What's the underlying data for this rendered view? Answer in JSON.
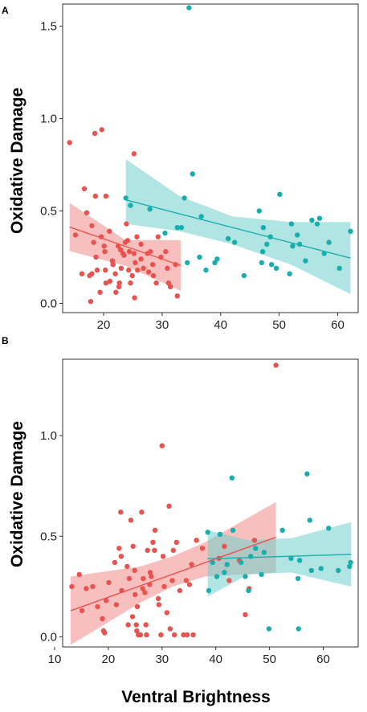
{
  "figure": {
    "xlabel": "Ventral Brightness",
    "colors": {
      "red": "#E8534F",
      "teal": "#19AEAE",
      "red_band": "#F08C88",
      "teal_band": "#6FCFCC"
    }
  },
  "chart_data": [
    {
      "panel": "A",
      "type": "scatter",
      "ylabel": "Oxidative Damage",
      "xlim": [
        13,
        63.5
      ],
      "ylim": [
        -0.05,
        1.62
      ],
      "xticks": [
        20,
        30,
        40,
        50,
        60
      ],
      "yticks": [
        0.0,
        0.5,
        1.0,
        1.5
      ],
      "ytick_labels": [
        "0.0",
        "0.5",
        "1.0",
        "1.5"
      ],
      "grid": false,
      "series": [
        {
          "color": "#E8534F",
          "points": [
            [
              14.2,
              0.87
            ],
            [
              15.2,
              0.37
            ],
            [
              16.3,
              0.16
            ],
            [
              16.7,
              0.62
            ],
            [
              17.1,
              0.49
            ],
            [
              17.6,
              0.15
            ],
            [
              17.8,
              0.01
            ],
            [
              18.0,
              0.42
            ],
            [
              18.0,
              0.16
            ],
            [
              18.3,
              0.33
            ],
            [
              18.5,
              0.92
            ],
            [
              18.6,
              0.58
            ],
            [
              18.7,
              0.25
            ],
            [
              18.9,
              0.18
            ],
            [
              19.4,
              0.06
            ],
            [
              19.6,
              0.36
            ],
            [
              19.7,
              0.94
            ],
            [
              20.1,
              0.31
            ],
            [
              20.2,
              0.28
            ],
            [
              20.3,
              0.18
            ],
            [
              20.4,
              0.58
            ],
            [
              20.4,
              0.11
            ],
            [
              21.0,
              0.39
            ],
            [
              21.1,
              0.12
            ],
            [
              21.5,
              0.23
            ],
            [
              21.6,
              0.21
            ],
            [
              22.0,
              0.16
            ],
            [
              22.1,
              0.06
            ],
            [
              22.5,
              0.31
            ],
            [
              22.6,
              0.09
            ],
            [
              22.7,
              0.11
            ],
            [
              22.9,
              0.29
            ],
            [
              23.0,
              0.19
            ],
            [
              23.3,
              0.27
            ],
            [
              23.5,
              0.26
            ],
            [
              23.7,
              0.33
            ],
            [
              23.9,
              0.43
            ],
            [
              24.1,
              0.34
            ],
            [
              24.3,
              0.18
            ],
            [
              24.4,
              0.28
            ],
            [
              24.6,
              0.11
            ],
            [
              24.9,
              0.15
            ],
            [
              25.2,
              0.81
            ],
            [
              25.2,
              0.27
            ],
            [
              25.3,
              0.03
            ],
            [
              25.4,
              0.22
            ],
            [
              25.7,
              0.36
            ],
            [
              25.8,
              0.18
            ],
            [
              26.4,
              0.32
            ],
            [
              26.4,
              0.24
            ],
            [
              26.8,
              0.19
            ],
            [
              27.5,
              0.27
            ],
            [
              27.7,
              0.17
            ],
            [
              28.0,
              0.28
            ],
            [
              28.4,
              0.21
            ],
            [
              28.5,
              0.15
            ],
            [
              29.0,
              0.11
            ],
            [
              29.3,
              0.36
            ],
            [
              29.8,
              0.25
            ],
            [
              30.6,
              0.28
            ],
            [
              30.9,
              0.19
            ],
            [
              31.1,
              0.11
            ],
            [
              31.4,
              0.09
            ],
            [
              32.3,
              0.21
            ],
            [
              32.6,
              0.04
            ]
          ],
          "fit": {
            "x": [
              14.2,
              33.2
            ],
            "y": [
              0.413,
              0.205
            ]
          },
          "band": {
            "x": [
              14.2,
              23.7,
              33.2
            ],
            "lower": [
              0.283,
              0.203,
              0.068
            ],
            "upper": [
              0.543,
              0.343,
              0.342
            ]
          }
        },
        {
          "color": "#19AEAE",
          "points": [
            [
              23.8,
              0.57
            ],
            [
              24.6,
              0.53
            ],
            [
              27.9,
              0.51
            ],
            [
              30.5,
              0.38
            ],
            [
              32.6,
              0.41
            ],
            [
              33.3,
              0.41
            ],
            [
              33.8,
              0.57
            ],
            [
              34.3,
              0.22
            ],
            [
              34.6,
              1.6
            ],
            [
              35.2,
              0.7
            ],
            [
              36.4,
              0.25
            ],
            [
              36.7,
              0.47
            ],
            [
              37.5,
              0.18
            ],
            [
              39.0,
              0.22
            ],
            [
              39.4,
              0.24
            ],
            [
              41.3,
              0.35
            ],
            [
              42.4,
              0.33
            ],
            [
              44.0,
              0.15
            ],
            [
              46.6,
              0.5
            ],
            [
              47.0,
              0.22
            ],
            [
              47.2,
              0.28
            ],
            [
              47.3,
              0.41
            ],
            [
              47.9,
              0.32
            ],
            [
              48.5,
              0.36
            ],
            [
              48.7,
              0.21
            ],
            [
              49.5,
              0.19
            ],
            [
              50.1,
              0.59
            ],
            [
              51.8,
              0.16
            ],
            [
              52.1,
              0.43
            ],
            [
              52.3,
              0.31
            ],
            [
              53.1,
              0.37
            ],
            [
              53.5,
              0.32
            ],
            [
              54.5,
              0.23
            ],
            [
              55.6,
              0.45
            ],
            [
              56.5,
              0.43
            ],
            [
              56.9,
              0.46
            ],
            [
              57.7,
              0.27
            ],
            [
              58.5,
              0.33
            ],
            [
              60.3,
              0.19
            ],
            [
              62.2,
              0.39
            ]
          ],
          "fit": {
            "x": [
              23.8,
              62.2
            ],
            "y": [
              0.56,
              0.245
            ]
          },
          "band": {
            "x": [
              23.8,
              33.0,
              42.0,
              52.0,
              62.2
            ],
            "lower": [
              0.43,
              0.39,
              0.32,
              0.21,
              0.05
            ],
            "upper": [
              0.78,
              0.58,
              0.47,
              0.44,
              0.44
            ]
          }
        }
      ]
    },
    {
      "panel": "B",
      "type": "scatter",
      "ylabel": "Oxidative Damage",
      "xlim": [
        11.5,
        66.5
      ],
      "ylim": [
        -0.05,
        1.38
      ],
      "xticks": [
        10,
        20,
        30,
        40,
        50,
        60
      ],
      "yticks": [
        0.0,
        0.5,
        1.0
      ],
      "ytick_labels": [
        "0.0",
        "0.5",
        "1.0"
      ],
      "grid": false,
      "series": [
        {
          "color": "#E8534F",
          "points": [
            [
              13.2,
              0.25
            ],
            [
              14.6,
              0.31
            ],
            [
              15.1,
              0.13
            ],
            [
              15.9,
              0.24
            ],
            [
              17.1,
              0.25
            ],
            [
              18.0,
              0.15
            ],
            [
              18.9,
              0.09
            ],
            [
              19.1,
              0.03
            ],
            [
              19.3,
              0.02
            ],
            [
              19.6,
              0.18
            ],
            [
              20.1,
              0.27
            ],
            [
              21.2,
              0.37
            ],
            [
              21.5,
              0.16
            ],
            [
              22.0,
              0.44
            ],
            [
              22.3,
              0.62
            ],
            [
              22.4,
              0.4
            ],
            [
              22.5,
              0.23
            ],
            [
              23.5,
              0.35
            ],
            [
              23.7,
              0.06
            ],
            [
              23.9,
              0.29
            ],
            [
              24.2,
              0.58
            ],
            [
              24.5,
              0.1
            ],
            [
              24.6,
              0.45
            ],
            [
              24.9,
              0.33
            ],
            [
              25.0,
              0.21
            ],
            [
              25.2,
              0.06
            ],
            [
              25.3,
              0.03
            ],
            [
              25.4,
              0.15
            ],
            [
              25.6,
              0.01
            ],
            [
              26.0,
              0.01
            ],
            [
              26.2,
              0.62
            ],
            [
              26.4,
              0.24
            ],
            [
              26.5,
              0.29
            ],
            [
              26.8,
              0.22
            ],
            [
              27.0,
              0.06
            ],
            [
              27.1,
              0.01
            ],
            [
              27.3,
              0.43
            ],
            [
              27.7,
              0.26
            ],
            [
              27.8,
              0.32
            ],
            [
              28.0,
              0.3
            ],
            [
              28.3,
              0.47
            ],
            [
              28.6,
              0.43
            ],
            [
              28.7,
              0.53
            ],
            [
              29.3,
              0.19
            ],
            [
              29.4,
              0.16
            ],
            [
              29.8,
              0.01
            ],
            [
              30.0,
              0.95
            ],
            [
              30.2,
              0.4
            ],
            [
              30.4,
              0.25
            ],
            [
              30.9,
              0.12
            ],
            [
              31.3,
              0.65
            ],
            [
              31.5,
              0.04
            ],
            [
              31.9,
              0.28
            ],
            [
              32.1,
              0.43
            ],
            [
              32.3,
              0.01
            ],
            [
              32.7,
              0.47
            ],
            [
              33.3,
              0.23
            ],
            [
              34.0,
              0.01
            ],
            [
              34.5,
              0.28
            ],
            [
              34.7,
              0.01
            ],
            [
              35.1,
              0.26
            ],
            [
              35.5,
              0.36
            ],
            [
              35.8,
              0.01
            ],
            [
              36.4,
              0.48
            ],
            [
              37.5,
              0.44
            ],
            [
              40.6,
              0.39
            ],
            [
              41.6,
              0.45
            ],
            [
              42.5,
              0.28
            ],
            [
              44.4,
              0.38
            ],
            [
              45.5,
              0.11
            ],
            [
              46.2,
              0.24
            ],
            [
              47.2,
              0.48
            ],
            [
              51.2,
              1.35
            ]
          ],
          "fit": {
            "x": [
              13.0,
              51.2
            ],
            "y": [
              0.13,
              0.495
            ]
          },
          "band": {
            "x": [
              13.0,
              26.0,
              32.0,
              38.0,
              51.2
            ],
            "lower": [
              -0.04,
              0.17,
              0.25,
              0.3,
              0.32
            ],
            "upper": [
              0.3,
              0.35,
              0.4,
              0.47,
              0.67
            ]
          }
        },
        {
          "color": "#19AEAE",
          "points": [
            [
              38.5,
              0.52
            ],
            [
              38.7,
              0.23
            ],
            [
              39.4,
              0.37
            ],
            [
              40.2,
              0.3
            ],
            [
              40.8,
              0.51
            ],
            [
              41.6,
              0.32
            ],
            [
              42.1,
              0.36
            ],
            [
              43.0,
              0.79
            ],
            [
              43.2,
              0.53
            ],
            [
              44.7,
              0.37
            ],
            [
              45.5,
              0.3
            ],
            [
              46.1,
              0.23
            ],
            [
              46.5,
              0.4
            ],
            [
              47.4,
              0.44
            ],
            [
              48.5,
              0.31
            ],
            [
              49.0,
              0.42
            ],
            [
              49.9,
              0.04
            ],
            [
              52.4,
              0.53
            ],
            [
              54.0,
              0.39
            ],
            [
              55.3,
              0.29
            ],
            [
              55.4,
              0.04
            ],
            [
              55.6,
              0.38
            ],
            [
              57.0,
              0.81
            ],
            [
              57.5,
              0.58
            ],
            [
              57.8,
              0.33
            ],
            [
              59.6,
              0.34
            ],
            [
              61.0,
              0.54
            ],
            [
              62.8,
              0.33
            ],
            [
              64.9,
              0.35
            ],
            [
              65.1,
              0.37
            ]
          ],
          "fit": {
            "x": [
              38.5,
              65.2
            ],
            "y": [
              0.388,
              0.41
            ]
          },
          "band": {
            "x": [
              38.5,
              46.0,
              54.0,
              65.2
            ],
            "lower": [
              0.2,
              0.31,
              0.32,
              0.25
            ],
            "upper": [
              0.53,
              0.48,
              0.49,
              0.57
            ]
          }
        }
      ]
    }
  ]
}
